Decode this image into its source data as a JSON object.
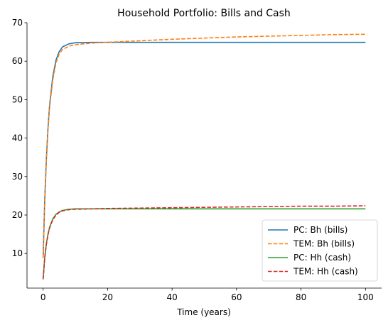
{
  "chart_data": {
    "type": "line",
    "title": "Household Portfolio: Bills and Cash",
    "xlabel": "Time (years)",
    "ylabel": "",
    "xlim": [
      -5,
      105
    ],
    "ylim": [
      1,
      70
    ],
    "xticks": [
      0,
      20,
      40,
      60,
      80,
      100
    ],
    "yticks": [
      10,
      20,
      30,
      40,
      50,
      60,
      70
    ],
    "grid": false,
    "legend_position": "lower-right",
    "x": [
      0,
      0.5,
      1,
      1.5,
      2,
      3,
      4,
      5,
      6,
      8,
      10,
      15,
      20,
      30,
      40,
      50,
      60,
      70,
      80,
      90,
      100
    ],
    "series": [
      {
        "name": "PC: Bh (bills)",
        "color": "#1f77b4",
        "dash": "solid",
        "values": [
          8.8,
          24.0,
          34.5,
          42.5,
          48.5,
          56.0,
          60.3,
          62.5,
          63.7,
          64.5,
          64.8,
          64.9,
          64.9,
          64.9,
          64.9,
          64.9,
          64.9,
          64.9,
          64.9,
          64.9,
          64.9
        ]
      },
      {
        "name": "TEM: Bh (bills)",
        "color": "#ff7f0e",
        "dash": "dashed",
        "values": [
          8.8,
          23.5,
          34.0,
          42.0,
          48.0,
          55.2,
          59.6,
          61.9,
          63.0,
          63.9,
          64.3,
          64.7,
          64.9,
          65.3,
          65.7,
          66.0,
          66.3,
          66.5,
          66.7,
          66.9,
          67.0
        ]
      },
      {
        "name": "PC: Hh (cash)",
        "color": "#2ca02c",
        "dash": "solid",
        "values": [
          3.3,
          9.0,
          12.5,
          15.0,
          16.8,
          19.0,
          20.2,
          20.8,
          21.2,
          21.5,
          21.6,
          21.6,
          21.6,
          21.6,
          21.6,
          21.6,
          21.6,
          21.6,
          21.6,
          21.6,
          21.6
        ]
      },
      {
        "name": "TEM: Hh (cash)",
        "color": "#d62728",
        "dash": "dashed",
        "values": [
          3.3,
          8.8,
          12.3,
          14.8,
          16.6,
          18.8,
          20.0,
          20.7,
          21.1,
          21.4,
          21.5,
          21.6,
          21.7,
          21.8,
          21.9,
          22.0,
          22.1,
          22.2,
          22.3,
          22.3,
          22.4
        ]
      }
    ]
  }
}
